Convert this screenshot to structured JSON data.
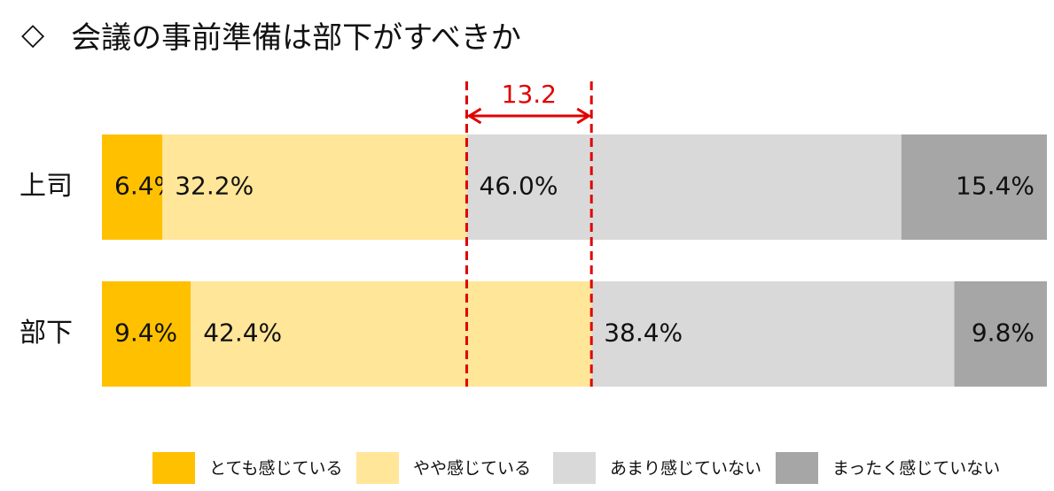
{
  "title": {
    "marker": "◇",
    "text": "会議の事前準備は部下がすべきか"
  },
  "chart_data": {
    "type": "bar",
    "orientation": "horizontal",
    "stacked": true,
    "percent": true,
    "categories": [
      "上司",
      "部下"
    ],
    "series": [
      {
        "name": "とても感じている",
        "values": [
          6.4,
          9.4
        ],
        "labels": [
          "6.4%",
          "9.4%"
        ],
        "color": "#FFC000"
      },
      {
        "name": "やや感じている",
        "values": [
          32.2,
          42.4
        ],
        "labels": [
          "32.2%",
          "42.4%"
        ],
        "color": "#FFE699"
      },
      {
        "name": "あまり感じていない",
        "values": [
          46.0,
          38.4
        ],
        "labels": [
          "46.0%",
          "38.4%"
        ],
        "color": "#D9D9D9"
      },
      {
        "name": "まったく感じていない",
        "values": [
          15.4,
          9.8
        ],
        "labels": [
          "15.4%",
          "9.8%"
        ],
        "color": "#A6A6A6"
      }
    ],
    "annotation": {
      "text": "13.2",
      "value": 13.2,
      "color": "#E00000",
      "style": "dashed lines with double arrow between the positive-response boundaries"
    },
    "xlim": [
      0,
      100
    ],
    "legend": "bottom",
    "grid": false
  }
}
